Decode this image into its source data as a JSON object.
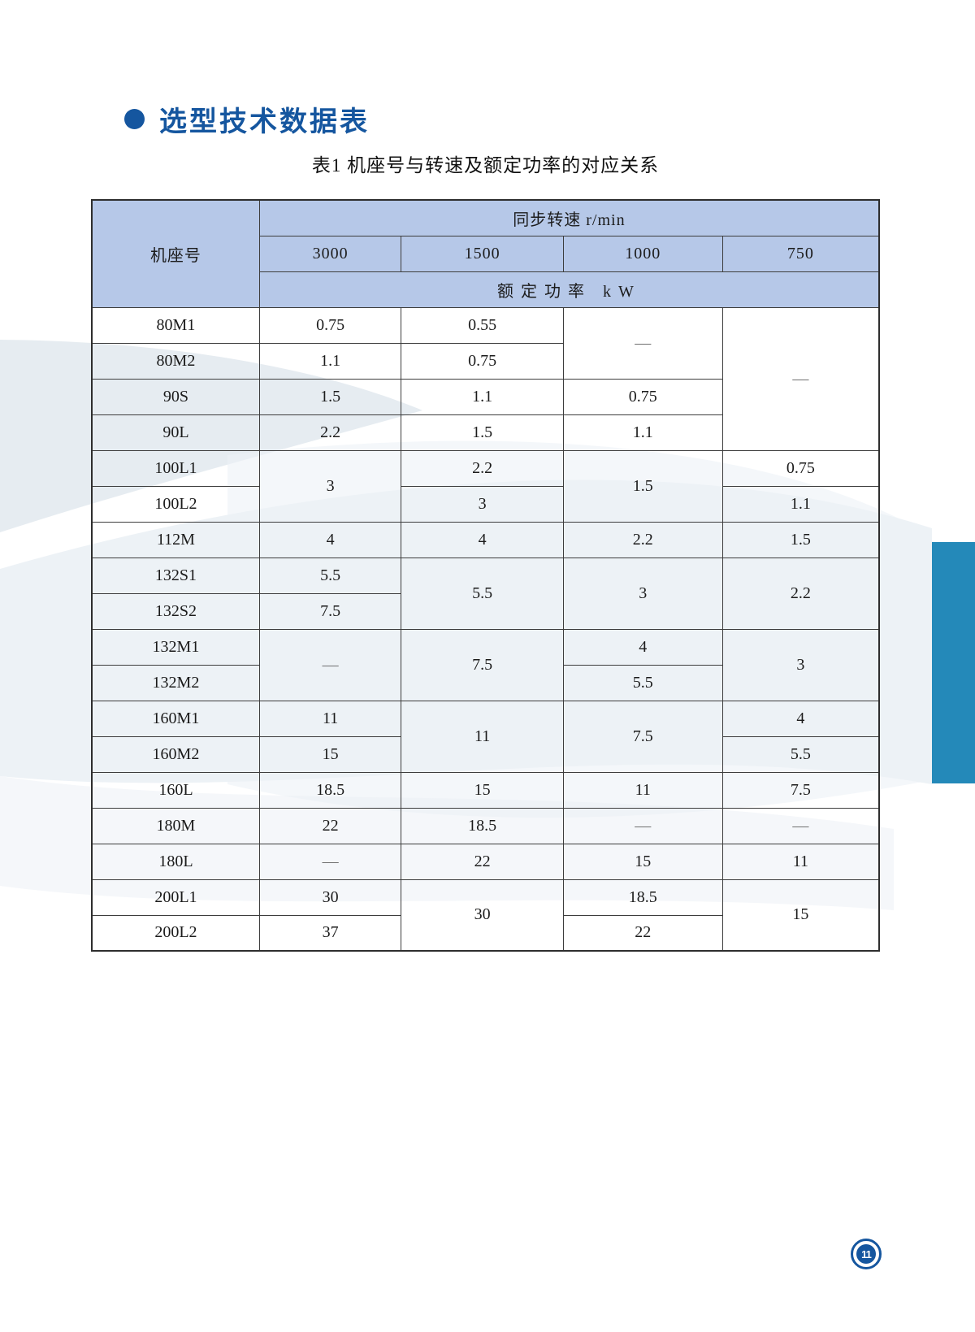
{
  "page": {
    "title": "选型技术数据表",
    "page_number": "11",
    "accent_color": "#15569f",
    "sidebar_color": "#2489b9",
    "header_bg": "#b6c8e8"
  },
  "table": {
    "caption": "表1  机座号与转速及额定功率的对应关系",
    "corner_header": "机座号",
    "speed_header": "同步转速 r/min",
    "power_header": "额定功率 kW",
    "speed_columns": [
      "3000",
      "1500",
      "1000",
      "750"
    ],
    "rows": [
      {
        "label": "80M1",
        "cells": [
          {
            "t": "0.75"
          },
          {
            "t": "0.55"
          },
          {
            "t": "—",
            "rs": 2
          },
          {
            "t": "—",
            "rs": 4
          }
        ]
      },
      {
        "label": "80M2",
        "cells": [
          {
            "t": "1.1"
          },
          {
            "t": "0.75"
          }
        ]
      },
      {
        "label": "90S",
        "cells": [
          {
            "t": "1.5"
          },
          {
            "t": "1.1"
          },
          {
            "t": "0.75"
          }
        ]
      },
      {
        "label": "90L",
        "cells": [
          {
            "t": "2.2"
          },
          {
            "t": "1.5"
          },
          {
            "t": "1.1"
          }
        ]
      },
      {
        "label": "100L1",
        "cells": [
          {
            "t": "3",
            "rs": 2
          },
          {
            "t": "2.2"
          },
          {
            "t": "1.5",
            "rs": 2
          },
          {
            "t": "0.75"
          }
        ]
      },
      {
        "label": "100L2",
        "cells": [
          {
            "t": "3"
          },
          {
            "t": "1.1"
          }
        ]
      },
      {
        "label": "112M",
        "cells": [
          {
            "t": "4"
          },
          {
            "t": "4"
          },
          {
            "t": "2.2"
          },
          {
            "t": "1.5"
          }
        ]
      },
      {
        "label": "132S1",
        "cells": [
          {
            "t": "5.5"
          },
          {
            "t": "5.5",
            "rs": 2
          },
          {
            "t": "3",
            "rs": 2
          },
          {
            "t": "2.2",
            "rs": 2
          }
        ]
      },
      {
        "label": "132S2",
        "cells": [
          {
            "t": "7.5"
          }
        ]
      },
      {
        "label": "132M1",
        "cells": [
          {
            "t": "—",
            "rs": 2
          },
          {
            "t": "7.5",
            "rs": 2
          },
          {
            "t": "4"
          },
          {
            "t": "3",
            "rs": 2
          }
        ]
      },
      {
        "label": "132M2",
        "cells": [
          {
            "t": "5.5"
          }
        ]
      },
      {
        "label": "160M1",
        "cells": [
          {
            "t": "11"
          },
          {
            "t": "11",
            "rs": 2
          },
          {
            "t": "7.5",
            "rs": 2
          },
          {
            "t": "4"
          }
        ]
      },
      {
        "label": "160M2",
        "cells": [
          {
            "t": "15"
          },
          {
            "t": "5.5"
          }
        ]
      },
      {
        "label": "160L",
        "cells": [
          {
            "t": "18.5"
          },
          {
            "t": "15"
          },
          {
            "t": "11"
          },
          {
            "t": "7.5"
          }
        ]
      },
      {
        "label": "180M",
        "cells": [
          {
            "t": "22"
          },
          {
            "t": "18.5"
          },
          {
            "t": "—"
          },
          {
            "t": "—"
          }
        ]
      },
      {
        "label": "180L",
        "cells": [
          {
            "t": "—"
          },
          {
            "t": "22"
          },
          {
            "t": "15"
          },
          {
            "t": "11"
          }
        ]
      },
      {
        "label": "200L1",
        "cells": [
          {
            "t": "30"
          },
          {
            "t": "30",
            "rs": 2
          },
          {
            "t": "18.5"
          },
          {
            "t": "15",
            "rs": 2
          }
        ]
      },
      {
        "label": "200L2",
        "cells": [
          {
            "t": "37"
          },
          {
            "t": "22"
          }
        ]
      }
    ]
  }
}
